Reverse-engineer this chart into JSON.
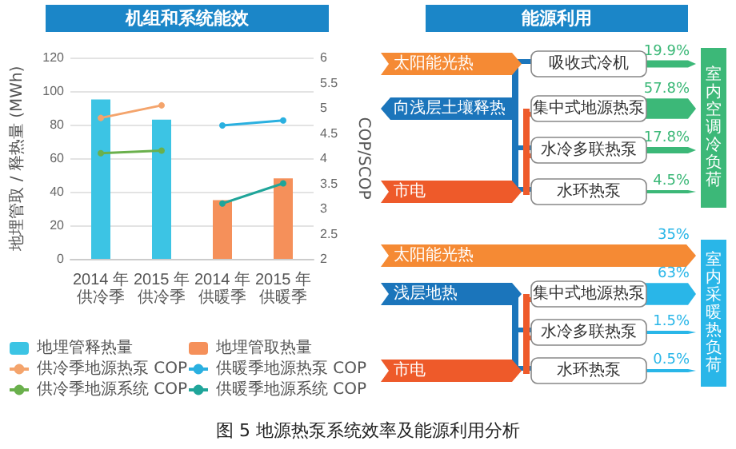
{
  "chart_data": [
    {
      "type": "bar",
      "title": "机组和系统能效",
      "categories": [
        "2014 年供冷季",
        "2015 年供冷季",
        "2014 年供暖季",
        "2015 年供暖季"
      ],
      "ylabel": "地埋管取 / 释热量 (MWh)",
      "y2label": "COP/SCOP",
      "ylim": [
        0,
        120
      ],
      "yticks": [
        0,
        20,
        40,
        60,
        80,
        100,
        120
      ],
      "y2lim": [
        2,
        6
      ],
      "y2ticks": [
        2,
        2.5,
        3,
        3.5,
        4,
        4.5,
        5,
        5.5,
        6
      ],
      "grid": "y",
      "legend": "bottom",
      "marker": "circle",
      "annotations": [
        "图 5 地源热泵系统效率及能源利用分析"
      ],
      "series": [
        {
          "name": "地埋管释热量",
          "type": "bar",
          "color": "#3cc4e4",
          "values": [
            95,
            83,
            null,
            null
          ]
        },
        {
          "name": "地埋管取热量",
          "type": "bar",
          "color": "#f5905a",
          "values": [
            null,
            null,
            35,
            48
          ]
        },
        {
          "name": "供冷季地源热泵 COP",
          "type": "line",
          "axis": "y2",
          "color": "#f4a46c",
          "values": [
            4.8,
            5.05,
            null,
            null
          ]
        },
        {
          "name": "供冷季地源系统 COP",
          "type": "line",
          "axis": "y2",
          "color": "#6ab04c",
          "values": [
            4.1,
            4.15,
            null,
            null
          ]
        },
        {
          "name": "供暖季地源热泵 COP",
          "type": "line",
          "axis": "y2",
          "color": "#2ab0e0",
          "values": [
            null,
            null,
            4.65,
            4.75
          ]
        },
        {
          "name": "供暖季地源系统 COP",
          "type": "line",
          "axis": "y2",
          "color": "#1fa59a",
          "values": [
            null,
            null,
            3.1,
            3.5
          ]
        }
      ]
    },
    {
      "type": "other",
      "title": "能源利用",
      "categories": [
        "吸收式冷机",
        "集中式地源热泵",
        "水冷多联热泵",
        "水环热泵"
      ],
      "values": [
        19.9,
        57.8,
        17.8,
        4.5
      ],
      "value_labels": [
        "19.9%",
        "57.8%",
        "17.8%",
        "4.5%"
      ],
      "color": "#3cb878",
      "annotations": [
        "太阳能光热",
        "向浅层土壤释热",
        "市电",
        "室内空调冷负荷"
      ]
    },
    {
      "type": "other",
      "categories": [
        "太阳能光热",
        "集中式地源热泵",
        "水冷多联热泵",
        "水环热泵"
      ],
      "values": [
        35,
        63,
        1.5,
        0.5
      ],
      "value_labels": [
        "35%",
        "63%",
        "1.5%",
        "0.5%"
      ],
      "color": "#29b6e8",
      "annotations": [
        "浅层地热",
        "市电",
        "室内采暖热负荷"
      ]
    }
  ]
}
